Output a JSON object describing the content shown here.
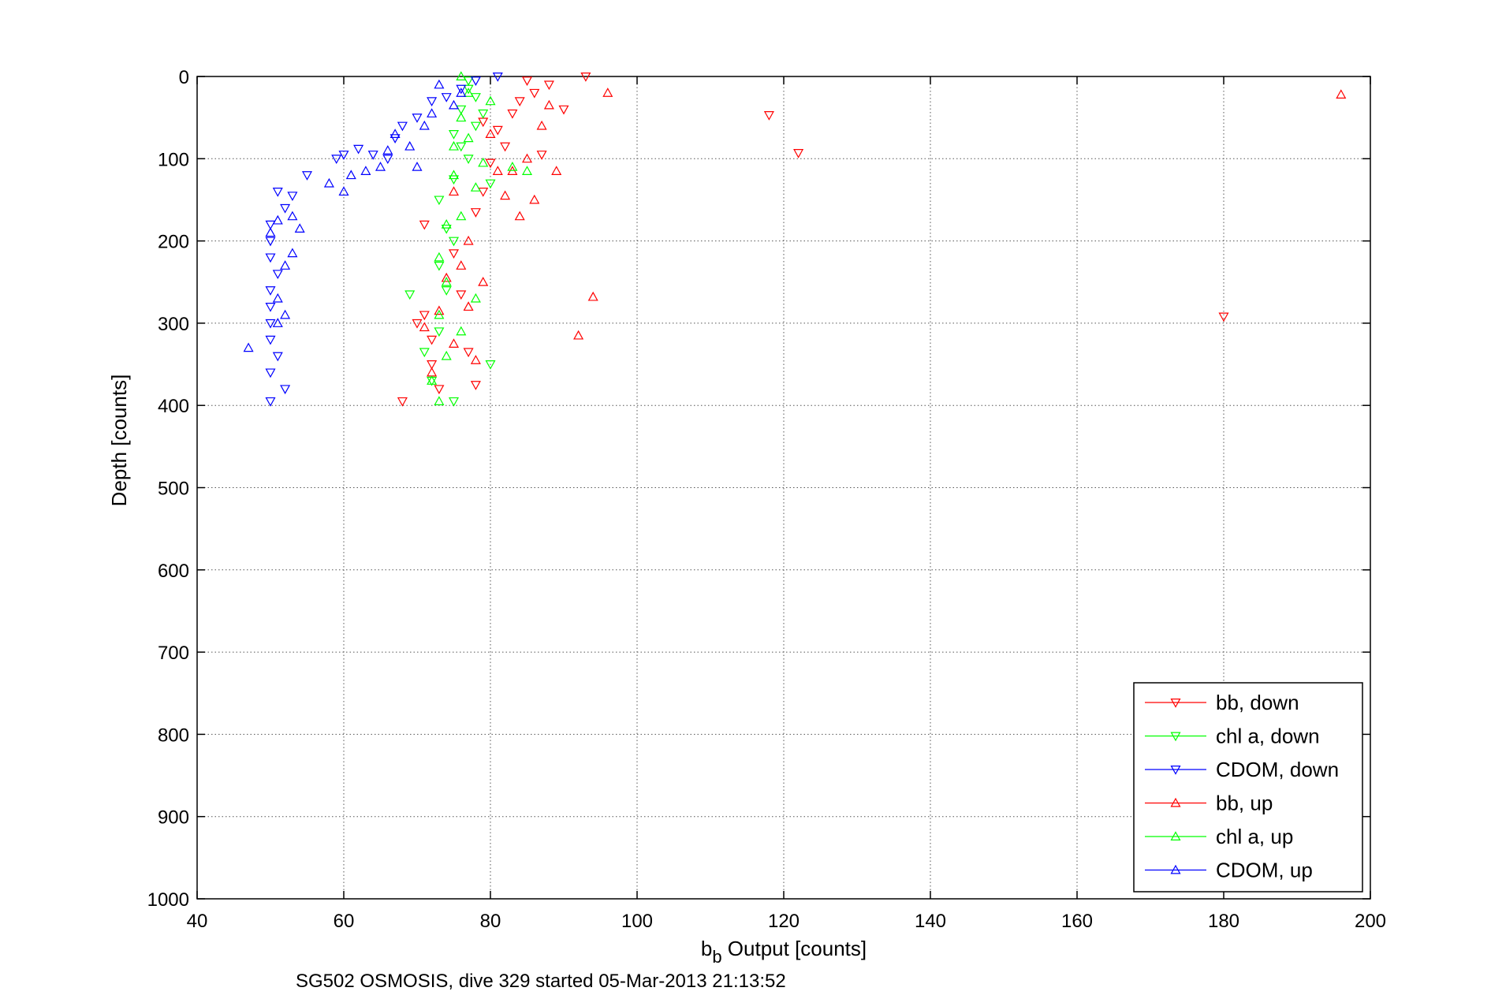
{
  "chart_data": {
    "type": "scatter",
    "title": "",
    "xlabel_main": "b",
    "xlabel_sub": "b",
    "xlabel_rest": " Output [counts]",
    "ylabel": "Depth [counts]",
    "caption": "SG502 OSMOSIS, dive 329 started 05-Mar-2013 21:13:52",
    "xlim": [
      40,
      200
    ],
    "ylim": [
      0,
      1000
    ],
    "y_reversed": true,
    "grid": true,
    "legend_position": "bottom-right",
    "x_ticks": [
      "40",
      "60",
      "80",
      "100",
      "120",
      "140",
      "160",
      "180",
      "200"
    ],
    "y_ticks": [
      "0",
      "100",
      "200",
      "300",
      "400",
      "500",
      "600",
      "700",
      "800",
      "900",
      "1000"
    ],
    "series": [
      {
        "name": "bb, down",
        "color": "#ff0000",
        "marker": "triangle-down",
        "points": [
          [
            68,
            395
          ],
          [
            70,
            300
          ],
          [
            71,
            180
          ],
          [
            71,
            290
          ],
          [
            72,
            320
          ],
          [
            72,
            350
          ],
          [
            73,
            380
          ],
          [
            75,
            215
          ],
          [
            76,
            265
          ],
          [
            77,
            335
          ],
          [
            78,
            165
          ],
          [
            78,
            375
          ],
          [
            79,
            140
          ],
          [
            79,
            55
          ],
          [
            80,
            105
          ],
          [
            81,
            65
          ],
          [
            82,
            85
          ],
          [
            83,
            45
          ],
          [
            84,
            30
          ],
          [
            85,
            5
          ],
          [
            86,
            20
          ],
          [
            87,
            95
          ],
          [
            88,
            10
          ],
          [
            90,
            40
          ],
          [
            93,
            0
          ],
          [
            118,
            47
          ],
          [
            122,
            93
          ],
          [
            180,
            292
          ]
        ]
      },
      {
        "name": "chl a, down",
        "color": "#00ff00",
        "marker": "triangle-down",
        "points": [
          [
            69,
            265
          ],
          [
            71,
            335
          ],
          [
            72,
            370
          ],
          [
            73,
            310
          ],
          [
            73,
            230
          ],
          [
            73,
            150
          ],
          [
            74,
            185
          ],
          [
            74,
            260
          ],
          [
            75,
            200
          ],
          [
            75,
            125
          ],
          [
            75,
            395
          ],
          [
            75,
            70
          ],
          [
            76,
            40
          ],
          [
            76,
            85
          ],
          [
            77,
            5
          ],
          [
            77,
            15
          ],
          [
            77,
            100
          ],
          [
            78,
            60
          ],
          [
            78,
            25
          ],
          [
            79,
            45
          ],
          [
            80,
            350
          ],
          [
            80,
            130
          ]
        ]
      },
      {
        "name": "CDOM, down",
        "color": "#0000ff",
        "marker": "triangle-down",
        "points": [
          [
            50,
            180
          ],
          [
            50,
            200
          ],
          [
            50,
            220
          ],
          [
            50,
            260
          ],
          [
            50,
            280
          ],
          [
            50,
            300
          ],
          [
            50,
            320
          ],
          [
            50,
            360
          ],
          [
            50,
            395
          ],
          [
            51,
            140
          ],
          [
            51,
            240
          ],
          [
            51,
            340
          ],
          [
            52,
            380
          ],
          [
            52,
            160
          ],
          [
            53,
            145
          ],
          [
            55,
            120
          ],
          [
            59,
            100
          ],
          [
            60,
            95
          ],
          [
            62,
            88
          ],
          [
            64,
            95
          ],
          [
            66,
            100
          ],
          [
            67,
            75
          ],
          [
            68,
            60
          ],
          [
            70,
            50
          ],
          [
            72,
            30
          ],
          [
            74,
            25
          ],
          [
            76,
            15
          ],
          [
            78,
            5
          ],
          [
            81,
            0
          ]
        ]
      },
      {
        "name": "bb, up",
        "color": "#ff0000",
        "marker": "triangle-up",
        "points": [
          [
            71,
            305
          ],
          [
            72,
            360
          ],
          [
            73,
            285
          ],
          [
            74,
            245
          ],
          [
            75,
            325
          ],
          [
            75,
            140
          ],
          [
            76,
            230
          ],
          [
            77,
            200
          ],
          [
            77,
            280
          ],
          [
            78,
            345
          ],
          [
            79,
            250
          ],
          [
            80,
            70
          ],
          [
            81,
            115
          ],
          [
            82,
            145
          ],
          [
            83,
            115
          ],
          [
            84,
            170
          ],
          [
            85,
            100
          ],
          [
            86,
            150
          ],
          [
            87,
            60
          ],
          [
            88,
            35
          ],
          [
            89,
            115
          ],
          [
            92,
            315
          ],
          [
            94,
            268
          ],
          [
            96,
            20
          ],
          [
            196,
            22
          ]
        ]
      },
      {
        "name": "chl a, up",
        "color": "#00ff00",
        "marker": "triangle-up",
        "points": [
          [
            72,
            370
          ],
          [
            73,
            395
          ],
          [
            73,
            290
          ],
          [
            73,
            220
          ],
          [
            74,
            340
          ],
          [
            74,
            180
          ],
          [
            74,
            250
          ],
          [
            75,
            120
          ],
          [
            75,
            85
          ],
          [
            76,
            310
          ],
          [
            76,
            170
          ],
          [
            76,
            50
          ],
          [
            77,
            20
          ],
          [
            77,
            75
          ],
          [
            78,
            270
          ],
          [
            78,
            135
          ],
          [
            79,
            105
          ],
          [
            80,
            30
          ],
          [
            83,
            110
          ],
          [
            85,
            115
          ],
          [
            76,
            0
          ]
        ]
      },
      {
        "name": "CDOM, up",
        "color": "#0000ff",
        "marker": "triangle-up",
        "points": [
          [
            47,
            330
          ],
          [
            50,
            190
          ],
          [
            51,
            175
          ],
          [
            51,
            270
          ],
          [
            51,
            300
          ],
          [
            52,
            230
          ],
          [
            52,
            290
          ],
          [
            53,
            215
          ],
          [
            53,
            170
          ],
          [
            54,
            185
          ],
          [
            58,
            130
          ],
          [
            60,
            140
          ],
          [
            61,
            120
          ],
          [
            63,
            115
          ],
          [
            65,
            110
          ],
          [
            66,
            90
          ],
          [
            67,
            70
          ],
          [
            69,
            85
          ],
          [
            70,
            110
          ],
          [
            71,
            60
          ],
          [
            72,
            45
          ],
          [
            73,
            10
          ],
          [
            75,
            35
          ],
          [
            76,
            20
          ]
        ]
      }
    ]
  }
}
